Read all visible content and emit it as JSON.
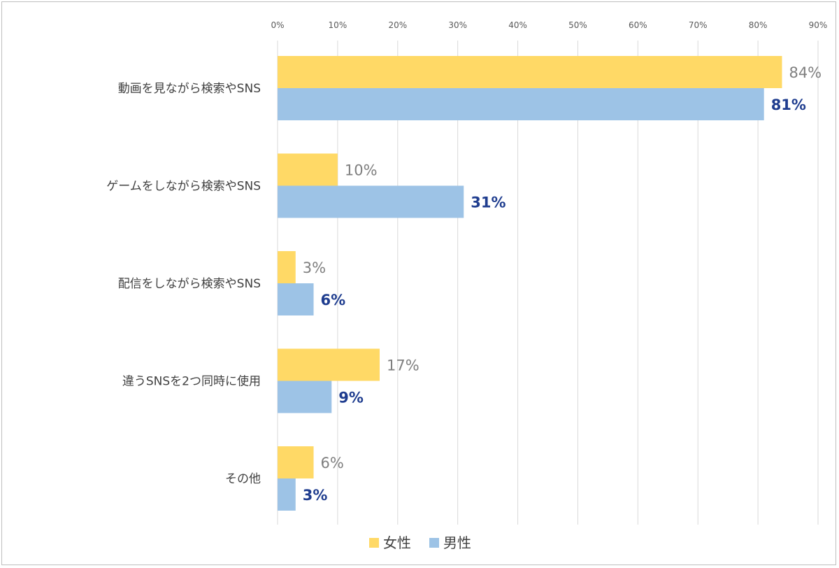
{
  "chart_data": {
    "type": "bar",
    "orientation": "horizontal",
    "categories": [
      "動画を見ながら検索やSNS",
      "ゲームをしながら検索やSNS",
      "配信をしながら検索やSNS",
      "違うSNSを2つ同時に使用",
      "その他"
    ],
    "series": [
      {
        "name": "女性",
        "color": "#ffd966",
        "label_color": "#7f7f7f",
        "values": [
          84,
          10,
          3,
          17,
          6
        ],
        "labels": [
          "84%",
          "10%",
          "3%",
          "17%",
          "6%"
        ]
      },
      {
        "name": "男性",
        "color": "#9dc3e6",
        "label_color": "#1f3d8f",
        "values": [
          81,
          31,
          6,
          9,
          3
        ],
        "labels": [
          "81%",
          "31%",
          "6%",
          "9%",
          "3%"
        ]
      }
    ],
    "xlim": [
      0,
      90
    ],
    "xticks": [
      "0%",
      "10%",
      "20%",
      "30%",
      "40%",
      "50%",
      "60%",
      "70%",
      "80%",
      "90%"
    ],
    "x_axis_position": "top",
    "grid": true,
    "legend_position": "bottom"
  }
}
